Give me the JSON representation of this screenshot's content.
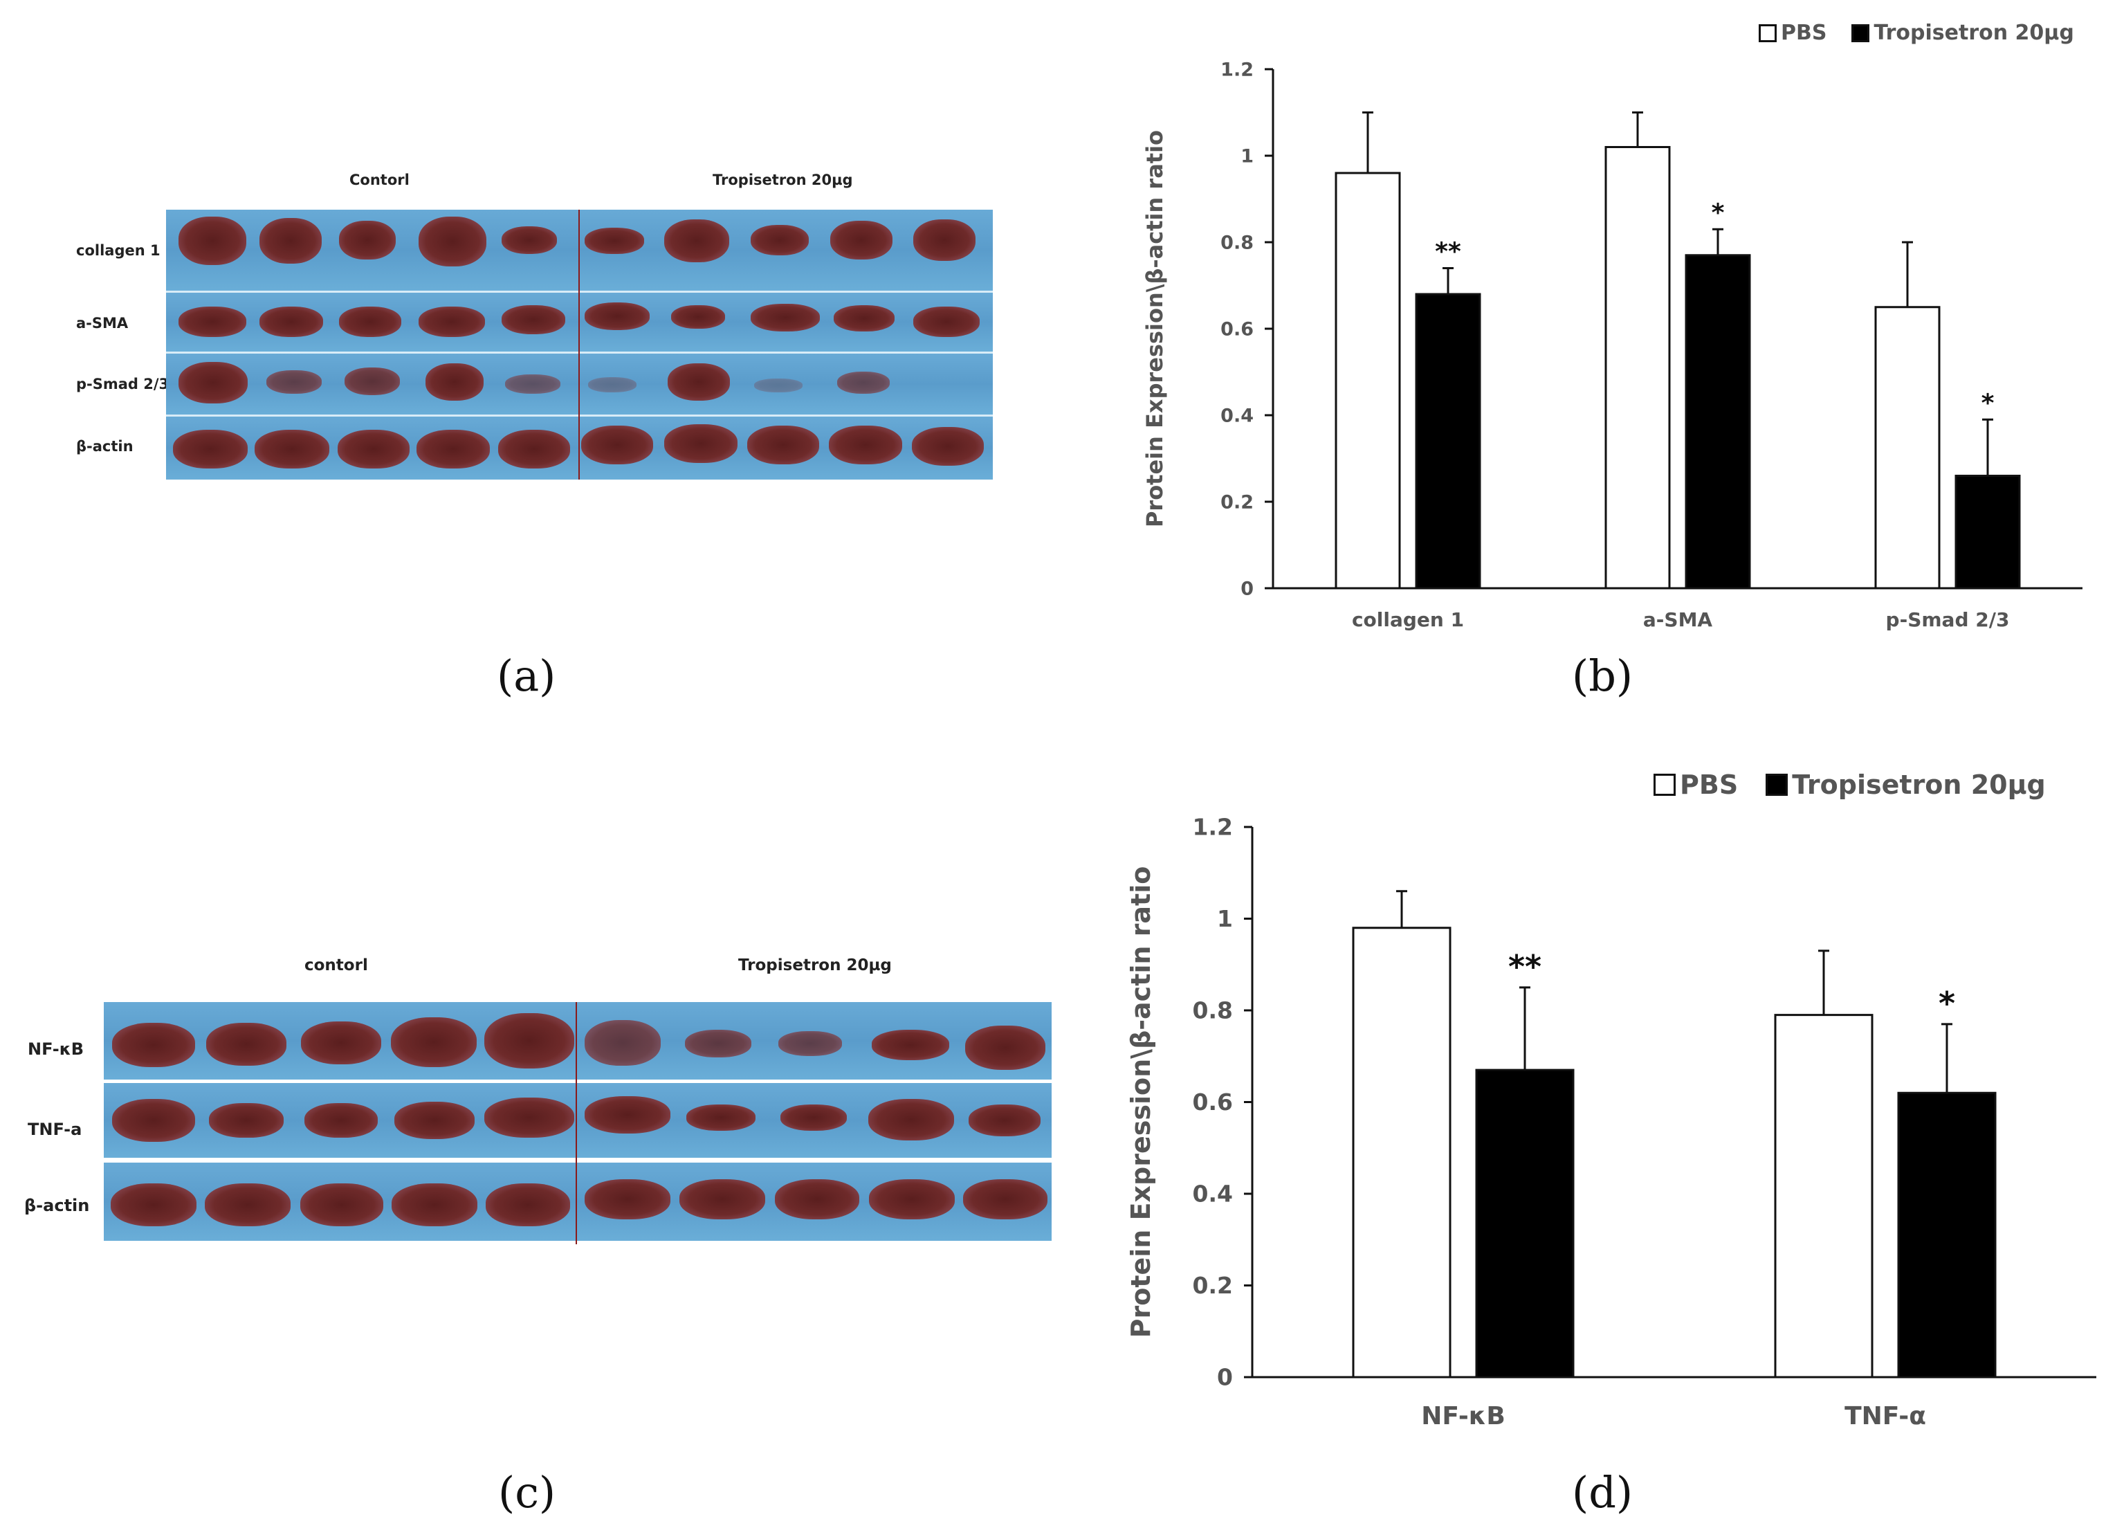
{
  "panel_a": {
    "caption": "(a)",
    "group_left": "Contorl",
    "group_right": "Tropisetron 20µg",
    "rows": [
      "collagen 1",
      "a-SMA",
      "p-Smad 2/3",
      "β-actin"
    ]
  },
  "panel_c": {
    "caption": "(c)",
    "group_left": "contorl",
    "group_right": "Tropisetron 20µg",
    "rows": [
      "NF-κB",
      "TNF-a",
      "β-actin"
    ]
  },
  "panel_b": {
    "caption": "(b)",
    "legend": {
      "pbs": "PBS",
      "trop": "Tropisetron 20µg"
    }
  },
  "panel_d": {
    "caption": "(d)",
    "legend": {
      "pbs": "PBS",
      "trop": "Tropisetron 20µg"
    }
  },
  "colors": {
    "pbs": "#ffffff",
    "trop": "#000000",
    "axis": "#111111",
    "text": "#555555"
  },
  "chart_data": [
    {
      "id": "b",
      "type": "bar",
      "ylabel": "Protein Expression\\β-actin ratio",
      "ylim": [
        0,
        1.2
      ],
      "yticks": [
        "0",
        "0.2",
        "0.4",
        "0.6",
        "0.8",
        "1",
        "1.2"
      ],
      "categories": [
        "collagen 1",
        "a-SMA",
        "p-Smad 2/3"
      ],
      "series": [
        {
          "name": "PBS",
          "values": [
            0.96,
            1.02,
            0.65
          ],
          "errors": [
            0.14,
            0.08,
            0.15
          ]
        },
        {
          "name": "Tropisetron 20µg",
          "values": [
            0.68,
            0.77,
            0.26
          ],
          "errors": [
            0.06,
            0.06,
            0.13
          ]
        }
      ],
      "annotations": [
        "**",
        "*",
        "*"
      ],
      "legend": "top-right"
    },
    {
      "id": "d",
      "type": "bar",
      "ylabel": "Protein Expression\\β-actin ratio",
      "ylim": [
        0,
        1.2
      ],
      "yticks": [
        "0",
        "0.2",
        "0.4",
        "0.6",
        "0.8",
        "1",
        "1.2"
      ],
      "categories": [
        "NF-κB",
        "TNF-α"
      ],
      "series": [
        {
          "name": "PBS",
          "values": [
            0.98,
            0.79
          ],
          "errors": [
            0.08,
            0.14
          ]
        },
        {
          "name": "Tropisetron 20µg",
          "values": [
            0.67,
            0.62
          ],
          "errors": [
            0.18,
            0.15
          ]
        }
      ],
      "annotations": [
        "**",
        "*"
      ],
      "legend": "top-right"
    }
  ]
}
